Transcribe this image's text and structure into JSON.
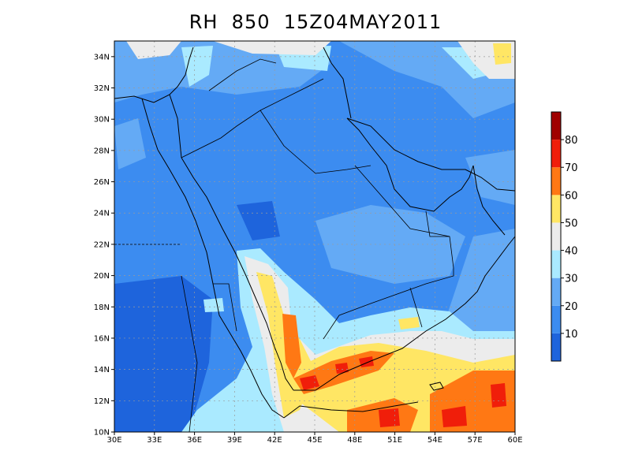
{
  "title": "RH  850  15Z04MAY2011",
  "map": {
    "variable": "RH",
    "level": "850",
    "time": "15Z04MAY2011",
    "lon_range": [
      30,
      60
    ],
    "lat_range": [
      10,
      35
    ],
    "lon_ticks": [
      "30E",
      "33E",
      "36E",
      "39E",
      "42E",
      "45E",
      "48E",
      "51E",
      "54E",
      "57E",
      "60E"
    ],
    "lon_tick_values": [
      30,
      33,
      36,
      39,
      42,
      45,
      48,
      51,
      54,
      57,
      60
    ],
    "lat_ticks": [
      "10N",
      "12N",
      "14N",
      "16N",
      "18N",
      "20N",
      "22N",
      "24N",
      "26N",
      "28N",
      "30N",
      "32N",
      "34N"
    ],
    "lat_tick_values": [
      10,
      12,
      14,
      16,
      18,
      20,
      22,
      24,
      26,
      28,
      30,
      32,
      34
    ],
    "grid": true
  },
  "colorbar": {
    "levels": [
      0,
      10,
      20,
      30,
      40,
      50,
      60,
      70,
      80,
      90
    ],
    "labels": [
      "10",
      "20",
      "30",
      "40",
      "50",
      "60",
      "70",
      "80"
    ],
    "label_values": [
      10,
      20,
      30,
      40,
      50,
      60,
      70,
      80
    ],
    "colors": [
      "#1e64dc",
      "#3c8cf0",
      "#64aaf5",
      "#aaeaff",
      "#ececec",
      "#ffe664",
      "#ff7814",
      "#f01e0a",
      "#a00000"
    ],
    "placement": "right"
  }
}
